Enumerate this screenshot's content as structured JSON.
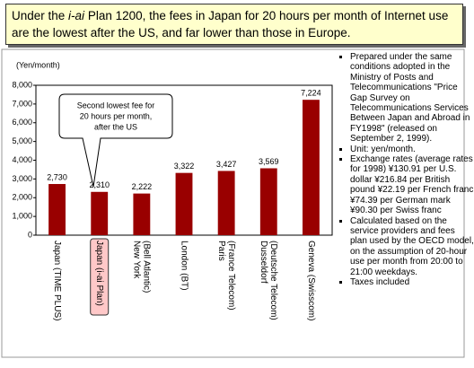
{
  "chart_data": {
    "type": "bar",
    "title_parts": [
      "Under the ",
      "i-ai",
      " Plan 1200, the fees in Japan for 20 hours per month of Internet use are the lowest after the US, and far lower than those in Europe."
    ],
    "y_axis_label": "(Yen/month)",
    "categories": [
      [
        "Japan (TIME PLUS)"
      ],
      [
        "Japan (i-ai Plan)"
      ],
      [
        "New York",
        "(Bell Atlantic)"
      ],
      [
        "London (BT)"
      ],
      [
        "Paris",
        "(France Telecom)"
      ],
      [
        "Dusseldorf",
        "(Deutsche Telecom)"
      ],
      [
        "Geneva (Swisscom)"
      ]
    ],
    "values": [
      2730,
      2310,
      2222,
      3322,
      3427,
      3569,
      7224
    ],
    "value_labels": [
      "2,730",
      "2,310",
      "2,222",
      "3,322",
      "3,427",
      "3,569",
      "7,224"
    ],
    "color": "#990000",
    "highlight_category": 1,
    "ylim": [
      0,
      8000
    ],
    "yticks": [
      0,
      {
        "value": 1000,
        "label": "1,000"
      },
      {
        "value": 2000,
        "label": "2,000"
      },
      {
        "value": 3000,
        "label": "3,000"
      },
      {
        "value": 4000,
        "label": "4,000"
      },
      {
        "value": 5000,
        "label": "5,000"
      },
      {
        "value": 6000,
        "label": "6,000"
      },
      {
        "value": 7000,
        "label": "7,000"
      },
      {
        "value": 8000,
        "label": "8,000"
      }
    ],
    "grid": false,
    "annotation": [
      "Second lowest fee for",
      "20 hours per month,",
      "after the US"
    ],
    "notes": [
      "Prepared under the same conditions adopted in the Ministry of Posts and Telecommunications \"Price Gap Survey on Telecommunications Services Between Japan and Abroad in FY1998\" (released on September 2, 1999).",
      "Unit:  yen/month.",
      "Exchange rates (average rates for 1998) ¥130.91 per U.S. dollar ¥216.84 per British pound ¥22.19 per French franc ¥74.39 per German mark ¥90.30 per Swiss franc",
      "Calculated based on the service providers and fees plan used by the OECD model, on the assumption of 20-hour use per month from 20:00 to 21:00 weekdays.",
      "Taxes included"
    ]
  }
}
